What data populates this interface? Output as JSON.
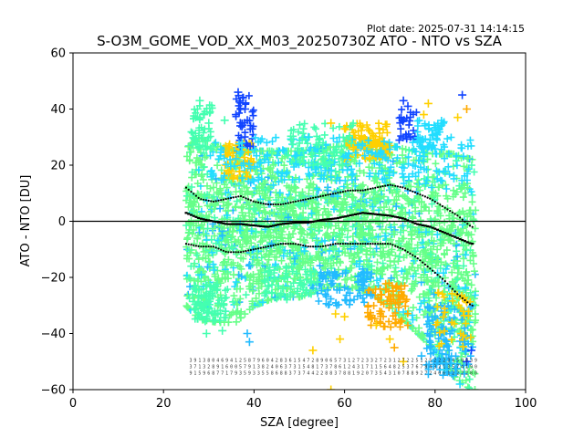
{
  "plot_date_label": "Plot date: 2025-07-31 14:14:15",
  "chart_data": {
    "type": "scatter",
    "title": "S-O3M_GOME_VOD_XX_M03_20250730Z ATO - NTO vs SZA",
    "xlabel": "SZA [degree]",
    "ylabel": "ATO - NTO [DU]",
    "xlim": [
      0,
      100
    ],
    "ylim": [
      -60,
      60
    ],
    "xticks": [
      0,
      20,
      40,
      60,
      80,
      100
    ],
    "yticks": [
      -60,
      -40,
      -20,
      0,
      20,
      40,
      60
    ],
    "grid": false,
    "reference_line_y": 0,
    "marker": "plus",
    "colors": {
      "bulk": "#66ff88",
      "mint": "#44ffb0",
      "cyan": "#22ddff",
      "sky": "#22bbff",
      "blue": "#1144ff",
      "yellow": "#ffd000",
      "orange": "#ffaa00",
      "median": "#000000"
    },
    "scatter_envelope": {
      "sza": [
        25,
        28,
        32,
        36,
        40,
        45,
        50,
        55,
        60,
        65,
        70,
        75,
        80,
        84,
        88
      ],
      "upper": [
        26,
        30,
        27,
        25,
        25,
        25,
        25,
        26,
        27,
        28,
        27,
        25,
        24,
        24,
        22
      ],
      "lower": [
        -30,
        -35,
        -36,
        -36,
        -30,
        -27,
        -27,
        -24,
        -23,
        -25,
        -30,
        -38,
        -46,
        -55,
        -60
      ]
    },
    "median": {
      "sza": [
        25,
        28,
        31,
        34,
        37,
        40,
        43,
        46,
        49,
        52,
        55,
        58,
        61,
        64,
        67,
        70,
        73,
        76,
        79,
        82,
        85,
        88
      ],
      "values": [
        3,
        1,
        0,
        -1,
        -1,
        -1.5,
        -2,
        -1,
        -0.5,
        -0.5,
        0.5,
        1,
        2,
        3,
        2.5,
        2,
        1,
        -1,
        -2,
        -4,
        -6,
        -8
      ]
    },
    "upper_band": {
      "sza": [
        25,
        28,
        31,
        34,
        37,
        40,
        43,
        46,
        49,
        52,
        55,
        58,
        61,
        64,
        67,
        70,
        73,
        76,
        79,
        82,
        85,
        88
      ],
      "values": [
        12,
        8,
        7,
        8,
        9,
        7,
        6,
        6,
        7,
        8,
        9,
        10,
        11,
        11,
        12,
        13,
        12,
        10,
        8,
        5,
        2,
        -2
      ]
    },
    "lower_band": {
      "sza": [
        25,
        28,
        31,
        34,
        37,
        40,
        43,
        46,
        49,
        52,
        55,
        58,
        61,
        64,
        67,
        70,
        73,
        76,
        79,
        82,
        85,
        88
      ],
      "values": [
        -8,
        -9,
        -9,
        -11,
        -11,
        -10,
        -9,
        -8,
        -8,
        -9,
        -9,
        -8,
        -8,
        -8,
        -8,
        -8,
        -10,
        -13,
        -17,
        -21,
        -26,
        -30
      ]
    },
    "outliers": [
      {
        "x": 36.5,
        "y": 46,
        "c": "blue"
      },
      {
        "x": 37.5,
        "y": 44,
        "c": "blue"
      },
      {
        "x": 38,
        "y": 40,
        "c": "blue"
      },
      {
        "x": 36,
        "y": 38,
        "c": "blue"
      },
      {
        "x": 37,
        "y": 34,
        "c": "blue"
      },
      {
        "x": 38.5,
        "y": 36,
        "c": "blue"
      },
      {
        "x": 28,
        "y": 43,
        "c": "mint"
      },
      {
        "x": 27.5,
        "y": 40,
        "c": "mint"
      },
      {
        "x": 29,
        "y": 38,
        "c": "mint"
      },
      {
        "x": 33.5,
        "y": 36,
        "c": "mint"
      },
      {
        "x": 30,
        "y": 35,
        "c": "mint"
      },
      {
        "x": 73,
        "y": 43,
        "c": "blue"
      },
      {
        "x": 74,
        "y": 41,
        "c": "blue"
      },
      {
        "x": 72.5,
        "y": 37,
        "c": "blue"
      },
      {
        "x": 78.5,
        "y": 42,
        "c": "yellow"
      },
      {
        "x": 77.5,
        "y": 38,
        "c": "yellow"
      },
      {
        "x": 86,
        "y": 45,
        "c": "blue"
      },
      {
        "x": 87,
        "y": 40,
        "c": "orange"
      },
      {
        "x": 85,
        "y": 37,
        "c": "yellow"
      },
      {
        "x": 57,
        "y": 35,
        "c": "yellow"
      },
      {
        "x": 60,
        "y": 33,
        "c": "yellow"
      },
      {
        "x": 52,
        "y": 30,
        "c": "cyan"
      },
      {
        "x": 39,
        "y": -43,
        "c": "sky"
      },
      {
        "x": 38.5,
        "y": -40,
        "c": "sky"
      },
      {
        "x": 29.5,
        "y": -40,
        "c": "mint"
      },
      {
        "x": 33,
        "y": -39,
        "c": "mint"
      },
      {
        "x": 53,
        "y": -46,
        "c": "yellow"
      },
      {
        "x": 59,
        "y": -42,
        "c": "yellow"
      },
      {
        "x": 67,
        "y": -37,
        "c": "yellow"
      },
      {
        "x": 71,
        "y": -45,
        "c": "orange"
      },
      {
        "x": 70,
        "y": -42,
        "c": "yellow"
      },
      {
        "x": 73,
        "y": -50,
        "c": "yellow"
      },
      {
        "x": 58,
        "y": -33,
        "c": "yellow"
      },
      {
        "x": 60,
        "y": -34,
        "c": "yellow"
      },
      {
        "x": 77,
        "y": -48,
        "c": "sky"
      },
      {
        "x": 80,
        "y": -50,
        "c": "sky"
      },
      {
        "x": 82,
        "y": -53,
        "c": "cyan"
      },
      {
        "x": 84,
        "y": -55,
        "c": "sky"
      },
      {
        "x": 85.5,
        "y": -58,
        "c": "cyan"
      },
      {
        "x": 87,
        "y": -50,
        "c": "blue"
      },
      {
        "x": 88,
        "y": -46,
        "c": "blue"
      },
      {
        "x": 86.5,
        "y": -43,
        "c": "sky"
      },
      {
        "x": 57,
        "y": -60,
        "c": "yellow"
      }
    ],
    "clusters": [
      {
        "x": [
          33,
          40
        ],
        "y": [
          15,
          28
        ],
        "c": "yellow",
        "n": 60
      },
      {
        "x": [
          60,
          70
        ],
        "y": [
          22,
          35
        ],
        "c": "yellow",
        "n": 110
      },
      {
        "x": [
          65,
          74
        ],
        "y": [
          -38,
          -22
        ],
        "c": "orange",
        "n": 90
      },
      {
        "x": [
          36,
          40
        ],
        "y": [
          25,
          45
        ],
        "c": "blue",
        "n": 40
      },
      {
        "x": [
          72,
          76
        ],
        "y": [
          28,
          40
        ],
        "c": "blue",
        "n": 25
      },
      {
        "x": [
          76,
          82
        ],
        "y": [
          26,
          36
        ],
        "c": "cyan",
        "n": 50
      },
      {
        "x": [
          26,
          31
        ],
        "y": [
          25,
          42
        ],
        "c": "mint",
        "n": 50
      },
      {
        "x": [
          54,
          66
        ],
        "y": [
          -30,
          -18
        ],
        "c": "sky",
        "n": 80
      },
      {
        "x": [
          42,
          54
        ],
        "y": [
          -28,
          -16
        ],
        "c": "mint",
        "n": 60
      },
      {
        "x": [
          78,
          88
        ],
        "y": [
          -55,
          -30
        ],
        "c": "sky",
        "n": 110
      },
      {
        "x": [
          80,
          88
        ],
        "y": [
          -45,
          -25
        ],
        "c": "yellow",
        "n": 40
      },
      {
        "x": [
          26,
          34
        ],
        "y": [
          -36,
          -22
        ],
        "c": "mint",
        "n": 90
      },
      {
        "x": [
          30,
          88
        ],
        "y": [
          14,
          30
        ],
        "c": "cyan",
        "n": 220
      },
      {
        "x": [
          48,
          62
        ],
        "y": [
          20,
          35
        ],
        "c": "mint",
        "n": 70
      }
    ],
    "bin_counts": {
      "sza": [
        26,
        27,
        28,
        29,
        30,
        31,
        32,
        33,
        34,
        35,
        36,
        37,
        38,
        39,
        40,
        41,
        42,
        43,
        44,
        45,
        46,
        47,
        48,
        49,
        50,
        51,
        52,
        53,
        54,
        55,
        56,
        57,
        58,
        59,
        60,
        61,
        62,
        63,
        64,
        65,
        66,
        67,
        68,
        69,
        70,
        71,
        72,
        73,
        74,
        75,
        76,
        77,
        78,
        79,
        80,
        81,
        82,
        83,
        84,
        85,
        86,
        87,
        88,
        89
      ],
      "row1": [
        "3",
        "9",
        "1",
        "3",
        "8",
        "0",
        "4",
        "6",
        "9",
        "4",
        "1",
        "2",
        "5",
        "8",
        "7",
        "9",
        "6",
        "0",
        "4",
        "2",
        "8",
        "3",
        "6",
        "1",
        "5",
        "4",
        "7",
        "2",
        "8",
        "9",
        "0",
        "6",
        "5",
        "7",
        "3",
        "1",
        "2",
        "7",
        "2",
        "3",
        "3",
        "2",
        "7",
        "2",
        "3",
        "1",
        "2",
        "7",
        "2",
        "2",
        "5",
        "1",
        "2",
        "5",
        "2",
        "2",
        "2",
        "3",
        "4",
        "5",
        "0",
        "0",
        "3",
        "9"
      ],
      "row2": [
        "3",
        "7",
        "1",
        "3",
        "2",
        "8",
        "9",
        "1",
        "6",
        "0",
        "0",
        "5",
        "7",
        "9",
        "1",
        "3",
        "8",
        "2",
        "4",
        "0",
        "6",
        "3",
        "7",
        "3",
        "1",
        "5",
        "4",
        "8",
        "1",
        "7",
        "3",
        "7",
        "8",
        "6",
        "1",
        "2",
        "4",
        "3",
        "1",
        "7",
        "1",
        "1",
        "5",
        "6",
        "4",
        "8",
        "2",
        "5",
        "3",
        "7",
        "6",
        "7",
        "8",
        "4",
        "3",
        "2",
        "1",
        "3",
        "5",
        "7",
        "4",
        "1",
        "9",
        "0"
      ],
      "row3": [
        "9",
        "1",
        "5",
        "9",
        "6",
        "8",
        "7",
        "7",
        "1",
        "7",
        "9",
        "3",
        "5",
        "9",
        "3",
        "3",
        "5",
        "5",
        "8",
        "6",
        "8",
        "8",
        "3",
        "7",
        "3",
        "7",
        "4",
        "4",
        "2",
        "2",
        "8",
        "8",
        "3",
        "7",
        "8",
        "8",
        "1",
        "9",
        "2",
        "0",
        "7",
        "3",
        "5",
        "4",
        "3",
        "1",
        "0",
        "7",
        "8",
        "8",
        "9",
        "2",
        "7",
        "2",
        "4",
        "0",
        "6",
        "1",
        "2",
        "2",
        "2",
        "2",
        "8",
        "0"
      ]
    }
  }
}
